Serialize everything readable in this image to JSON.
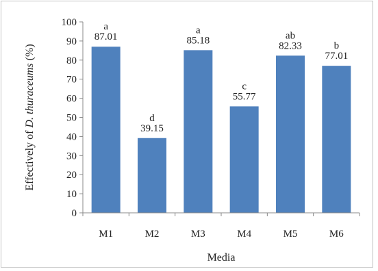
{
  "chart_data": {
    "type": "bar",
    "categories": [
      "M1",
      "M2",
      "M3",
      "M4",
      "M5",
      "M6"
    ],
    "values": [
      87.01,
      39.15,
      85.18,
      55.77,
      82.33,
      77.01
    ],
    "value_labels": [
      "87.01",
      "39.15",
      "85.18",
      "55.77",
      "82.33",
      "77.01"
    ],
    "significance": [
      "a",
      "d",
      "a",
      "c",
      "ab",
      "b"
    ],
    "title": "",
    "xlabel": "Media",
    "ylabel_prefix": "Effectively of ",
    "ylabel_species": "D. thuraceums",
    "ylabel_suffix": " (%)",
    "ylim": [
      0,
      100
    ],
    "ytick_step": 10,
    "yticks": [
      "0",
      "10",
      "20",
      "30",
      "40",
      "50",
      "60",
      "70",
      "80",
      "90",
      "100"
    ],
    "grid": false,
    "legend": "none",
    "bar_color": "#4f81bd",
    "axis_color": "#888888"
  }
}
